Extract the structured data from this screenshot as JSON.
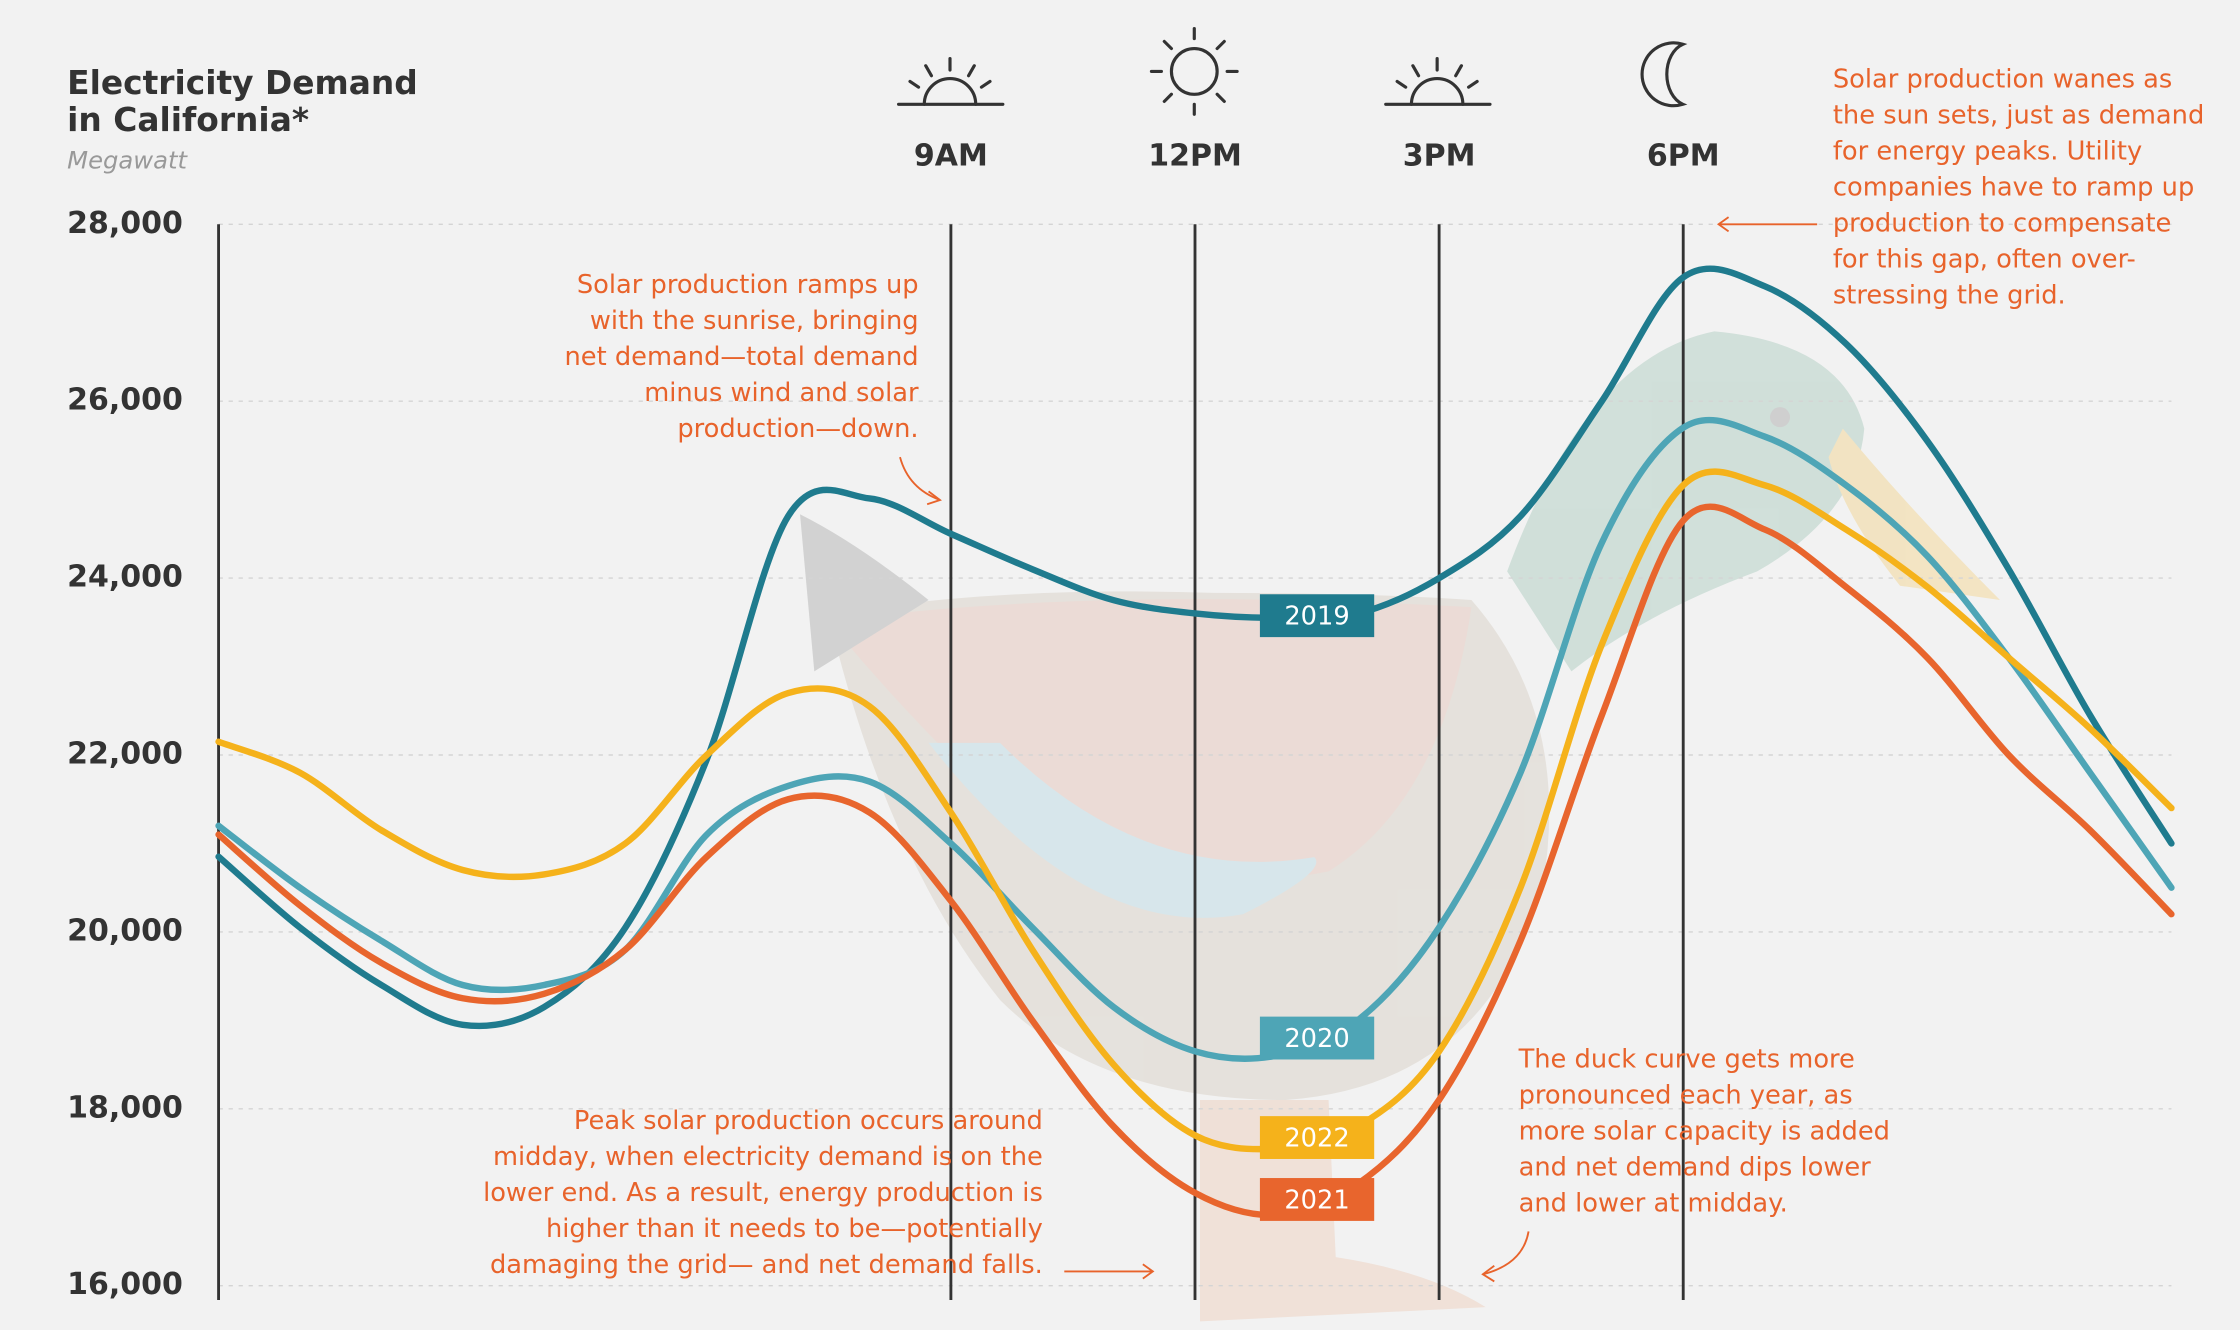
{
  "chart_data": {
    "type": "line",
    "title": [
      "Electricity Demand",
      "in California*"
    ],
    "subtitle": "Megawatt",
    "x": [
      0,
      1,
      2,
      3,
      4,
      5,
      6,
      7,
      8,
      9,
      10,
      11,
      12,
      13,
      14,
      15,
      16,
      17,
      18,
      19,
      20,
      21,
      22,
      23,
      24
    ],
    "xlim": [
      0,
      24
    ],
    "xticks": [
      {
        "value": 9,
        "label": "9AM"
      },
      {
        "value": 12,
        "label": "12PM"
      },
      {
        "value": 15,
        "label": "3PM"
      },
      {
        "value": 18,
        "label": "6PM"
      }
    ],
    "ylim": [
      16000,
      28000
    ],
    "yticks": [
      {
        "value": 16000,
        "label": "16,000"
      },
      {
        "value": 18000,
        "label": "18,000"
      },
      {
        "value": 20000,
        "label": "20,000"
      },
      {
        "value": 22000,
        "label": "22,000"
      },
      {
        "value": 24000,
        "label": "24,000"
      },
      {
        "value": 26000,
        "label": "26,000"
      },
      {
        "value": 28000,
        "label": "28,000"
      }
    ],
    "grid": true,
    "series": [
      {
        "name": "2019",
        "color": "#1f7b8e",
        "values": [
          20850,
          20050,
          19400,
          18950,
          19150,
          20050,
          21950,
          24700,
          24900,
          24500,
          24100,
          23750,
          23600,
          23550,
          23600,
          24000,
          24700,
          26000,
          27400,
          27300,
          26650,
          25550,
          24100,
          22450,
          21000
        ]
      },
      {
        "name": "2020",
        "color": "#4ea5b6",
        "values": [
          21200,
          20500,
          19900,
          19400,
          19400,
          19800,
          21100,
          21650,
          21700,
          21000,
          20050,
          19150,
          18650,
          18600,
          19000,
          20050,
          21800,
          24400,
          25700,
          25600,
          25050,
          24250,
          23100,
          21800,
          20500
        ]
      },
      {
        "name": "2022",
        "color": "#f5b21b",
        "values": [
          22150,
          21800,
          21150,
          20700,
          20650,
          21000,
          22000,
          22700,
          22550,
          21350,
          19800,
          18500,
          17700,
          17550,
          17800,
          18650,
          20500,
          23250,
          25050,
          25050,
          24550,
          23900,
          23100,
          22300,
          21400
        ]
      },
      {
        "name": "2021",
        "color": "#e8652d",
        "values": [
          21100,
          20300,
          19650,
          19250,
          19300,
          19800,
          20850,
          21500,
          21350,
          20350,
          19000,
          17800,
          17050,
          16800,
          17150,
          18100,
          19900,
          22450,
          24650,
          24550,
          23900,
          23100,
          22000,
          21150,
          20200
        ]
      }
    ],
    "annotations": [
      {
        "lines": [
          "Solar production ramps up",
          "with the sunrise, bringing",
          "net demand—total demand",
          "minus wind and solar",
          "production—down."
        ]
      },
      {
        "lines": [
          "Solar production wanes as",
          "the sun sets, just as demand",
          "for energy peaks. Utility",
          "companies have to ramp up",
          "production to compensate",
          "for this gap, often over-",
          "stressing the grid."
        ]
      },
      {
        "lines": [
          "Peak solar production occurs around",
          "midday, when electricity demand is on the",
          "lower end. As a result, energy production is",
          "higher than it needs to be—potentially",
          "damaging the grid— and net demand falls."
        ]
      },
      {
        "lines": [
          "The duck curve gets more",
          "pronounced each year, as",
          "more solar capacity is added",
          "and net demand dips lower",
          "and lower at midday."
        ]
      }
    ]
  }
}
